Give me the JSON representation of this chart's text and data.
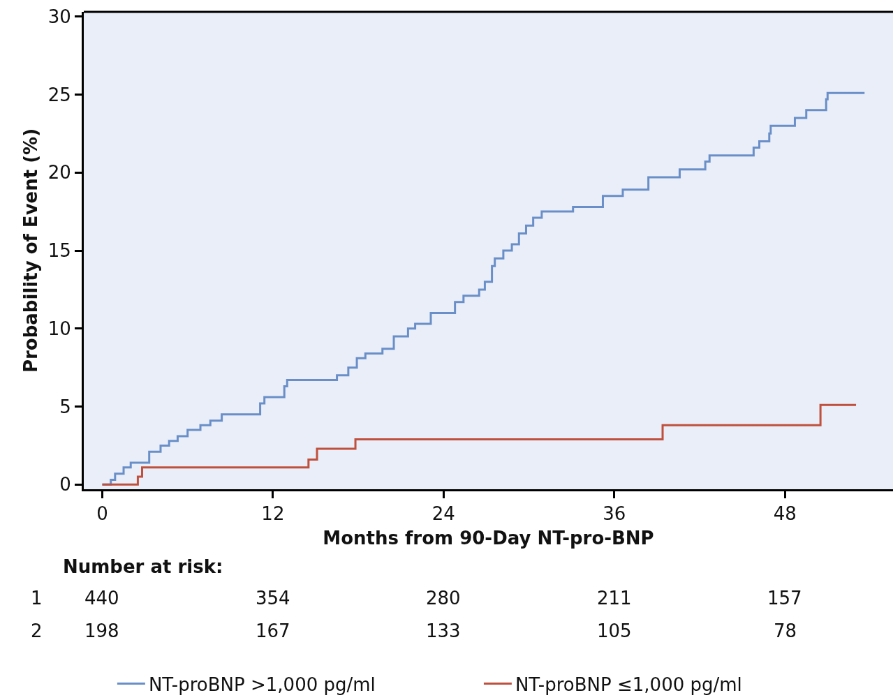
{
  "chart_data": {
    "type": "step",
    "xlabel": "Months from 90-Day NT-pro-BNP",
    "ylabel": "Probability of Event (%)",
    "xlim": [
      -1.3,
      55.6
    ],
    "xticks": [
      0,
      12,
      24,
      36,
      48
    ],
    "ylim": [
      -0.3,
      30.3
    ],
    "yticks": [
      0,
      5,
      10,
      15,
      20,
      25,
      30
    ],
    "grid": false,
    "legend": "bottom",
    "marker": "none",
    "line_style": "solid",
    "series": [
      {
        "name": "NT-proBNP >1,000 pg/ml",
        "color": "#6a8fc8",
        "x": [
          0,
          0.6,
          0.9,
          1.5,
          2.0,
          3.3,
          4.1,
          4.7,
          5.3,
          6.0,
          6.9,
          7.6,
          8.4,
          11.1,
          11.4,
          12.8,
          13.0,
          16.5,
          17.3,
          17.9,
          18.5,
          19.7,
          20.5,
          21.5,
          22.0,
          23.1,
          24.8,
          25.4,
          26.5,
          26.9,
          27.4,
          27.6,
          28.2,
          28.8,
          29.3,
          29.8,
          30.3,
          30.9,
          33.1,
          35.2,
          36.6,
          38.4,
          40.6,
          42.4,
          42.7,
          45.8,
          46.2,
          46.9,
          47.0,
          48.7,
          49.5,
          50.9,
          51.0,
          53.6
        ],
        "values": [
          0,
          0.3,
          0.7,
          1.1,
          1.4,
          2.1,
          2.5,
          2.8,
          3.1,
          3.5,
          3.8,
          4.1,
          4.5,
          5.2,
          5.6,
          6.3,
          6.7,
          7.0,
          7.5,
          8.1,
          8.4,
          8.7,
          9.5,
          10.0,
          10.3,
          11.0,
          11.7,
          12.1,
          12.5,
          13.0,
          14.0,
          14.5,
          15.0,
          15.4,
          16.1,
          16.6,
          17.1,
          17.5,
          17.8,
          18.5,
          18.9,
          19.7,
          20.2,
          20.7,
          21.1,
          21.6,
          22.0,
          22.5,
          23.0,
          23.5,
          24.0,
          24.7,
          25.1,
          25.1
        ]
      },
      {
        "name": "NT-proBNP ≤1,000 pg/ml",
        "color": "#c0503e",
        "x": [
          0,
          2.5,
          2.8,
          14.5,
          15.1,
          17.8,
          39.4,
          50.5,
          53.0
        ],
        "values": [
          0,
          0.5,
          1.1,
          1.6,
          2.3,
          2.9,
          3.8,
          5.1,
          5.1
        ]
      }
    ],
    "annotations": [
      "Number at risk:",
      "1",
      "440",
      "354",
      "280",
      "211",
      "157",
      "2",
      "198",
      "167",
      "133",
      "105",
      "78"
    ]
  }
}
